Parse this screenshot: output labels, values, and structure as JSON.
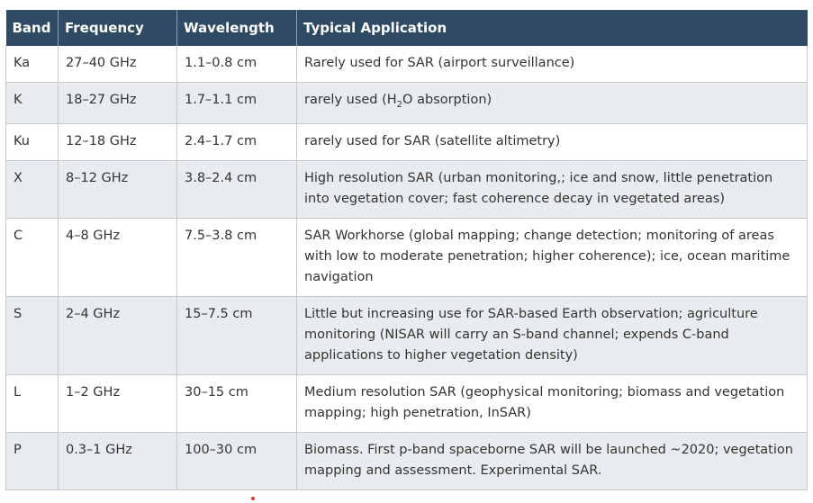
{
  "headers": [
    "Band",
    "Frequency",
    "Wavelength",
    "Typical Application"
  ],
  "rows": [
    {
      "band": "Ka",
      "frequency": "27–40 GHz",
      "wavelength": "1.1–0.8 cm",
      "application": "Rarely used for SAR (airport surveillance)"
    },
    {
      "band": "K",
      "frequency": "18–27 GHz",
      "wavelength": "1.7–1.1 cm",
      "application_pre": "rarely used (H",
      "application_sub": "2",
      "application_post": "O absorption)"
    },
    {
      "band": "Ku",
      "frequency": "12–18 GHz",
      "wavelength": "2.4–1.7 cm",
      "application": "rarely used for SAR (satellite altimetry)"
    },
    {
      "band": "X",
      "frequency": "8–12 GHz",
      "wavelength": "3.8–2.4 cm",
      "application": "High resolution SAR (urban monitoring,; ice and snow, little penetration into vegetation cover; fast coherence decay in vegetated areas)"
    },
    {
      "band": "C",
      "frequency": "4–8 GHz",
      "wavelength": "7.5–3.8 cm",
      "application": "SAR Workhorse (global mapping; change detection; monitoring of areas with low to moderate penetration; higher coherence); ice, ocean maritime navigation"
    },
    {
      "band": "S",
      "frequency": "2–4 GHz",
      "wavelength": "15–7.5 cm",
      "application": "Little but increasing use for SAR-based Earth observation; agriculture monitoring (NISAR will carry an S-band channel; expends C-band applications to higher vegetation density)"
    },
    {
      "band": "L",
      "frequency": "1–2 GHz",
      "wavelength": "30–15 cm",
      "application": "Medium resolution SAR (geophysical monitoring; biomass and vegetation mapping; high penetration, InSAR)"
    },
    {
      "band": "P",
      "frequency": "0.3–1 GHz",
      "wavelength": "100–30 cm",
      "application": "Biomass. First p-band spaceborne SAR will be launched ~2020; vegetation mapping and assessment. Experimental SAR."
    }
  ],
  "colors": {
    "header_bg": "#2e4b63",
    "row_alt_bg": "#e9ecee",
    "marker": "#d23a3a"
  }
}
